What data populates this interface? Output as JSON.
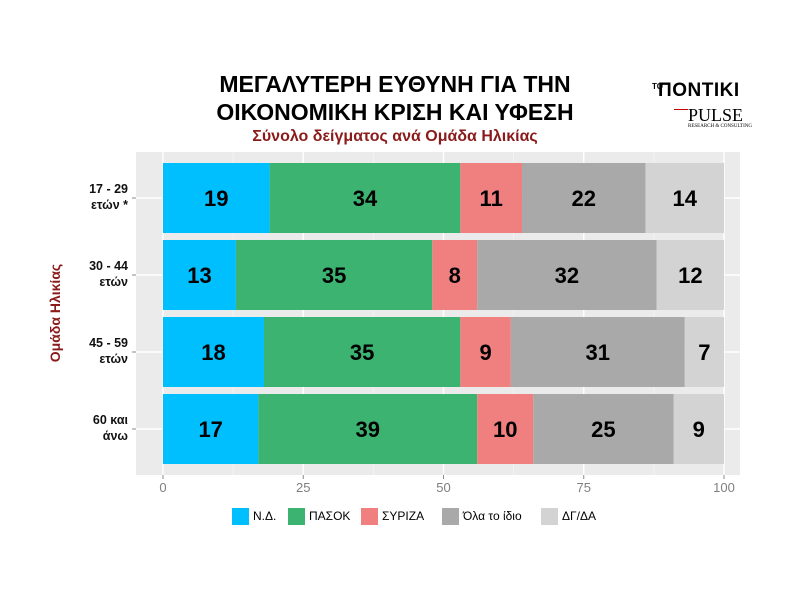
{
  "title_line1": "ΜΕΓΑΛΥΤΕΡΗ ΕΥΘΥΝΗ ΓΙΑ ΤΗΝ",
  "title_line2": "ΟΙΚΟΝΟΜΙΚΗ ΚΡΙΣΗ ΚΑΙ ΥΦΕΣΗ",
  "subtitle": "Σύνολο δείγματος ανά Ομάδα Ηλικίας",
  "logo": {
    "to": "ΤΟ",
    "name": "ΠΟΝΤΙΚΙ",
    "pulse": "PULSE",
    "tagline": "RESEARCH & CONSULTING"
  },
  "chart_data": {
    "type": "bar",
    "orientation": "horizontal",
    "stacked": true,
    "ylabel": "Ομάδα Ηλικίας",
    "categories": [
      [
        "17 - 29",
        "ετών *"
      ],
      [
        "30 - 44",
        "ετών"
      ],
      [
        "45 - 59",
        "ετών"
      ],
      [
        "60 και",
        "άνω"
      ]
    ],
    "xlim": [
      0,
      100
    ],
    "xticks": [
      0,
      25,
      50,
      75,
      100
    ],
    "grid": true,
    "legend_position": "bottom",
    "series": [
      {
        "name": "Ν.Δ.",
        "color": "#00bfff",
        "values": [
          19,
          13,
          18,
          17
        ]
      },
      {
        "name": "ΠΑΣΟΚ",
        "color": "#3cb371",
        "values": [
          34,
          35,
          35,
          39
        ]
      },
      {
        "name": "ΣΥΡΙΖΑ",
        "color": "#f08080",
        "values": [
          11,
          8,
          9,
          10
        ]
      },
      {
        "name": "Όλα το ίδιο",
        "color": "#a9a9a9",
        "values": [
          22,
          32,
          31,
          25
        ]
      },
      {
        "name": "ΔΓ/ΔΑ",
        "color": "#d3d3d3",
        "values": [
          14,
          12,
          7,
          9
        ]
      }
    ]
  }
}
